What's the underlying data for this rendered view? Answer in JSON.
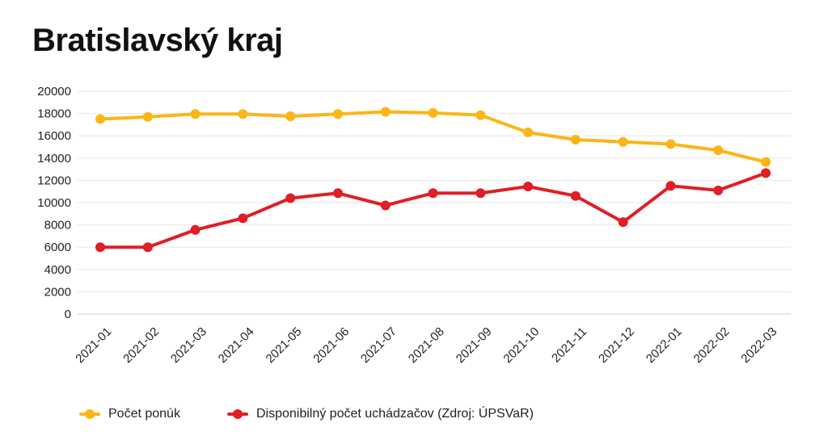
{
  "title": "Bratislavský kraj",
  "colors": {
    "orange": "#FBB516",
    "red": "#E01E25",
    "grid": "#E6E6E6",
    "axis": "#CCCCCC"
  },
  "legend": [
    {
      "label": "Počet ponúk",
      "color": "#FBB516"
    },
    {
      "label": "Disponibilný počet uchádzačov (Zdroj: ÚPSVaR)",
      "color": "#E01E25"
    }
  ],
  "chart_data": {
    "type": "line",
    "title": "Bratislavský kraj",
    "xlabel": "",
    "ylabel": "",
    "ylim": [
      0,
      20000
    ],
    "yticks": [
      0,
      2000,
      4000,
      6000,
      8000,
      10000,
      12000,
      14000,
      16000,
      18000,
      20000
    ],
    "grid": true,
    "legend_position": "bottom",
    "categories": [
      "2021-01",
      "2021-02",
      "2021-03",
      "2021-04",
      "2021-05",
      "2021-06",
      "2021-07",
      "2021-08",
      "2021-09",
      "2021-10",
      "2021-11",
      "2021-12",
      "2022-01",
      "2022-02",
      "2022-03"
    ],
    "series": [
      {
        "name": "Počet ponúk",
        "color": "#FBB516",
        "values": [
          17500,
          17700,
          17950,
          17950,
          17750,
          17950,
          18150,
          18050,
          17850,
          16300,
          15650,
          15450,
          15250,
          14700,
          13650
        ]
      },
      {
        "name": "Disponibilný počet uchádzačov (Zdroj: ÚPSVaR)",
        "color": "#E01E25",
        "values": [
          6000,
          6000,
          7550,
          8600,
          10400,
          10850,
          9750,
          10850,
          10850,
          11450,
          10600,
          8250,
          11500,
          11100,
          12650
        ]
      }
    ]
  }
}
